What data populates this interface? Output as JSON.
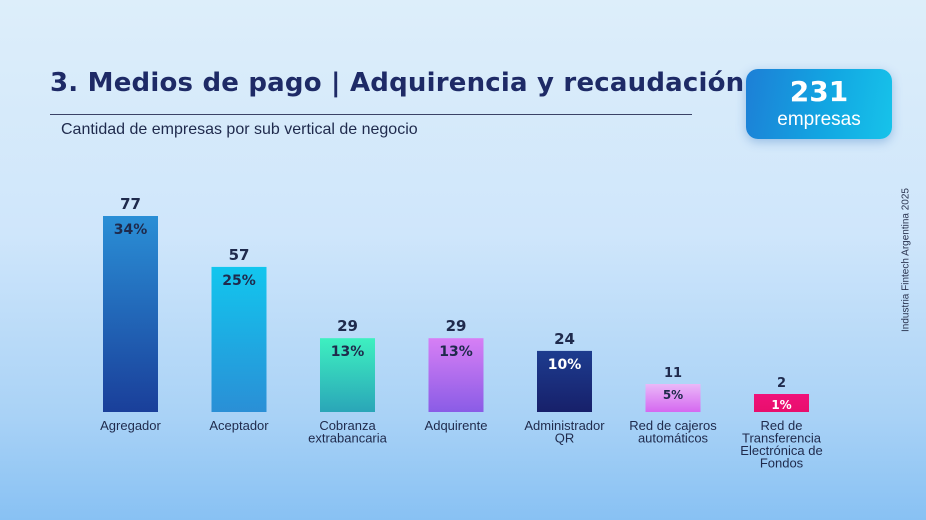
{
  "header": {
    "title": "3. Medios de pago | Adquirencia y recaudación",
    "subtitle": "Cantidad de empresas por sub vertical de negocio"
  },
  "badge": {
    "number": "231",
    "label": "empresas"
  },
  "side_note": "Industria Fintech Argentina 2025",
  "chart_data": {
    "type": "bar",
    "title": "Cantidad de empresas por sub vertical de negocio",
    "xlabel": "",
    "ylabel": "",
    "ylim": [
      0,
      77
    ],
    "grid": false,
    "categories": [
      "Agregador",
      "Aceptador",
      "Cobranza extrabancaria",
      "Adquirente",
      "Administrador QR",
      "Red de cajeros automáticos",
      "Red de Transferencia Electrónica de Fondos"
    ],
    "category_lines": [
      [
        "Agregador"
      ],
      [
        "Aceptador"
      ],
      [
        "Cobranza",
        "extrabancaria"
      ],
      [
        "Adquirente"
      ],
      [
        "Administrador",
        "QR"
      ],
      [
        "Red de cajeros",
        "automáticos"
      ],
      [
        "Red de",
        "Transferencia",
        "Electrónica de",
        "Fondos"
      ]
    ],
    "values": [
      77,
      57,
      29,
      29,
      24,
      11,
      2
    ],
    "percent_labels": [
      "34%",
      "25%",
      "13%",
      "13%",
      "10%",
      "5%",
      "1%"
    ],
    "colors": [
      [
        "#2a8fd6",
        "#1a3f9a"
      ],
      [
        "#12c6ee",
        "#2a8fd6"
      ],
      [
        "#3ef0c0",
        "#2aa6b8"
      ],
      [
        "#d77ff5",
        "#8a5ce6"
      ],
      [
        "#1d3c8f",
        "#17206a"
      ],
      [
        "#eab8f8",
        "#d568f0"
      ],
      [
        "#f0127a",
        "#e80e6c"
      ]
    ],
    "percent_colors": [
      "#1f2a4c",
      "#1f2a4c",
      "#1f2a4c",
      "#1f2a4c",
      "#ffffff",
      "#1f2a4c",
      "#ffffff"
    ]
  }
}
